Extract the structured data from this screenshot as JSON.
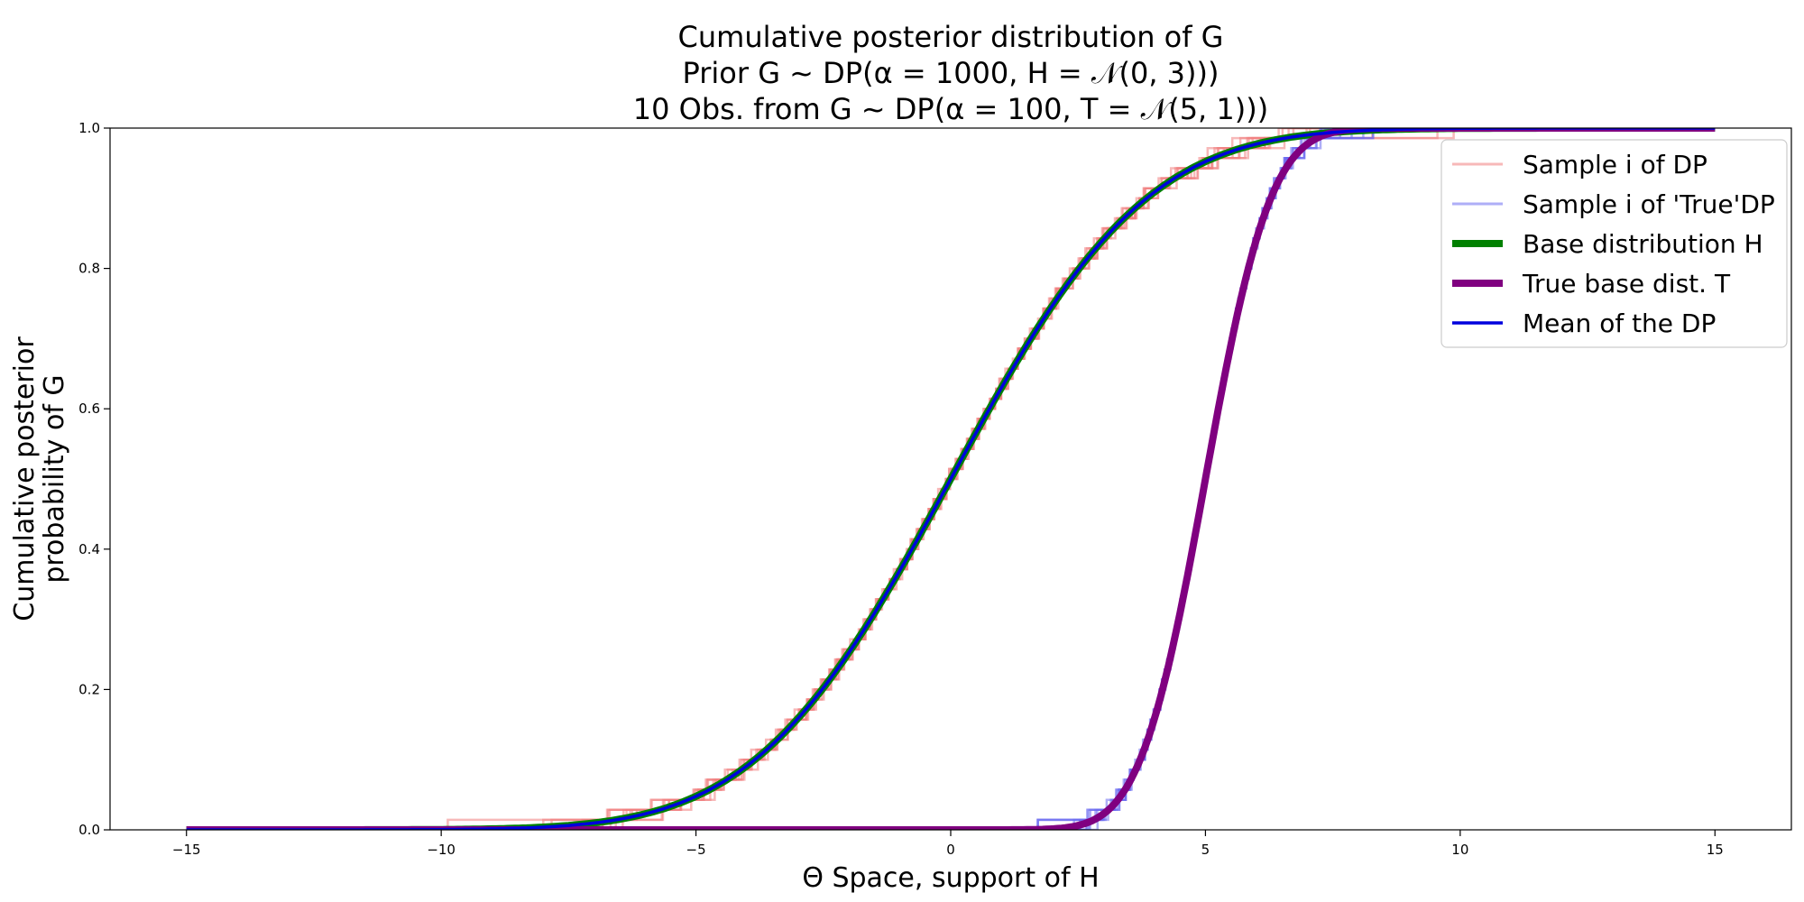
{
  "chart_data": {
    "type": "line",
    "title_lines": [
      "Cumulative posterior distribution of G",
      "Prior G ~ DP(α = 1000, H = 𝒩(0, 3)))",
      "10 Obs. from G ~ DP(α = 100, T = 𝒩(5, 1)))"
    ],
    "xlabel": "Θ Space, support of H",
    "ylabel_lines": [
      "Cumulative posterior",
      "probability of G"
    ],
    "xlim": [
      -16.5,
      16.5
    ],
    "ylim": [
      0.0,
      1.0
    ],
    "xticks": [
      -15,
      -10,
      -5,
      0,
      5,
      10,
      15
    ],
    "xtick_labels": [
      "−15",
      "−10",
      "−5",
      "0",
      "5",
      "10",
      "15"
    ],
    "yticks": [
      0.0,
      0.2,
      0.4,
      0.6,
      0.8,
      1.0
    ],
    "ytick_labels": [
      "0.0",
      "0.2",
      "0.4",
      "0.6",
      "0.8",
      "1.0"
    ],
    "grid": false,
    "legend_position": "top-right",
    "series": [
      {
        "name": "Sample i of DP",
        "kind": "samples",
        "color": "#f08080",
        "opacity": 0.55,
        "width": 2.5,
        "count": 10,
        "dist_mean": 0,
        "dist_sd": 3,
        "x_range": [
          -15,
          15
        ]
      },
      {
        "name": "Sample i of 'True'DP",
        "kind": "samples",
        "color": "#6b6bf0",
        "opacity": 0.55,
        "width": 2.5,
        "count": 10,
        "dist_mean": 5,
        "dist_sd": 1,
        "x_range": [
          -15,
          15
        ]
      },
      {
        "name": "Base distribution H",
        "kind": "cdf",
        "color": "#008000",
        "width": 8,
        "dist_mean": 0,
        "dist_sd": 3,
        "x_range": [
          -15,
          15
        ]
      },
      {
        "name": "True base dist. T",
        "kind": "cdf",
        "color": "#800080",
        "width": 8,
        "dist_mean": 5,
        "dist_sd": 1,
        "x_range": [
          -15,
          15
        ]
      },
      {
        "name": "Mean of the DP",
        "kind": "cdf",
        "color": "#0000dd",
        "width": 3.5,
        "dist_mean": 0,
        "dist_sd": 3,
        "x_range": [
          -15,
          15
        ]
      }
    ]
  }
}
